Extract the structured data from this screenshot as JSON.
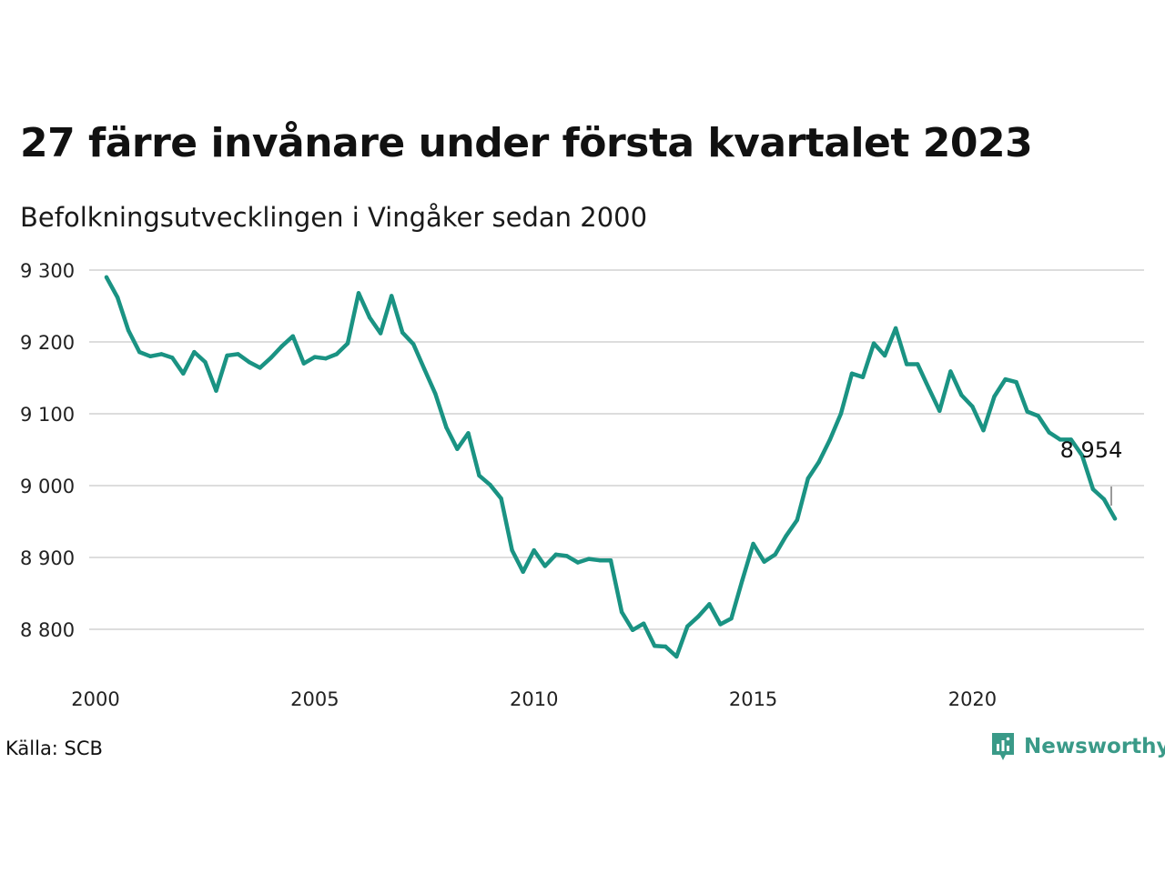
{
  "title": "27 färre invånare under första kvartalet 2023",
  "subtitle": "Befolkningsutvecklingen i Vingåker sedan 2000",
  "source": "Källa: SCB",
  "brand": {
    "name": "Newsworthy",
    "color": "#3a9a88"
  },
  "colors": {
    "line": "#1a9383",
    "grid": "#dddddd"
  },
  "chart_data": {
    "type": "line",
    "title": "27 färre invånare under första kvartalet 2023",
    "subtitle": "Befolkningsutvecklingen i Vingåker sedan 2000",
    "xlabel": "",
    "ylabel": "",
    "xlim": [
      2000,
      2024
    ],
    "ylim": [
      8750,
      9300
    ],
    "grid": true,
    "x_ticks": [
      2000,
      2005,
      2010,
      2015,
      2020
    ],
    "x_tick_labels": [
      "2000",
      "2005",
      "2010",
      "2015",
      "2020"
    ],
    "y_ticks": [
      8800,
      8900,
      9000,
      9100,
      9200,
      9300
    ],
    "y_tick_labels": [
      "8 800",
      "8 900",
      "9 000",
      "9 100",
      "9 200",
      "9 300"
    ],
    "end_label": "8 954",
    "series": [
      {
        "x": [
          2000.25,
          2000.5,
          2000.75,
          2001.0,
          2001.25,
          2001.5,
          2001.75,
          2002.0,
          2002.25,
          2002.5,
          2002.75,
          2003.0,
          2003.25,
          2003.5,
          2003.75,
          2004.0,
          2004.25,
          2004.5,
          2004.75,
          2005.0,
          2005.25,
          2005.5,
          2005.75,
          2006.0,
          2006.25,
          2006.5,
          2006.75,
          2007.0,
          2007.25,
          2007.5,
          2007.75,
          2008.0,
          2008.25,
          2008.5,
          2008.75,
          2009.0,
          2009.25,
          2009.5,
          2009.75,
          2010.0,
          2010.25,
          2010.5,
          2010.75,
          2011.0,
          2011.25,
          2011.5,
          2011.75,
          2012.0,
          2012.25,
          2012.5,
          2012.75,
          2013.0,
          2013.25,
          2013.5,
          2013.75,
          2014.0,
          2014.25,
          2014.5,
          2014.75,
          2015.0,
          2015.25,
          2015.5,
          2015.75,
          2016.0,
          2016.25,
          2016.5,
          2016.75,
          2017.0,
          2017.25,
          2017.5,
          2017.75,
          2018.0,
          2018.25,
          2018.5,
          2018.75,
          2019.0,
          2019.25,
          2019.5,
          2019.75,
          2020.0,
          2020.25,
          2020.5,
          2020.75,
          2021.0,
          2021.25,
          2021.5,
          2021.75,
          2022.0,
          2022.25,
          2022.5,
          2022.75,
          2023.0,
          2023.25
        ],
        "values": [
          9290,
          9262,
          9216,
          9186,
          9180,
          9183,
          9178,
          9156,
          9186,
          9172,
          9132,
          9181,
          9183,
          9172,
          9164,
          9178,
          9194,
          9208,
          9170,
          9179,
          9177,
          9183,
          9198,
          9268,
          9234,
          9212,
          9264,
          9213,
          9197,
          9162,
          9128,
          9081,
          9051,
          9073,
          9014,
          9001,
          8982,
          8910,
          8880,
          8910,
          8888,
          8904,
          8902,
          8893,
          8898,
          8896,
          8896,
          8824,
          8799,
          8808,
          8777,
          8776,
          8762,
          8804,
          8818,
          8835,
          8807,
          8815,
          8868,
          8919,
          8894,
          8904,
          8930,
          8952,
          9010,
          9033,
          9064,
          9100,
          9156,
          9151,
          9198,
          9181,
          9219,
          9169,
          9169,
          9136,
          9104,
          9159,
          9126,
          9110,
          9077,
          9124,
          9148,
          9144,
          9103,
          9097,
          9074,
          9064,
          9064,
          9042,
          8995,
          8981,
          8954
        ]
      }
    ]
  }
}
